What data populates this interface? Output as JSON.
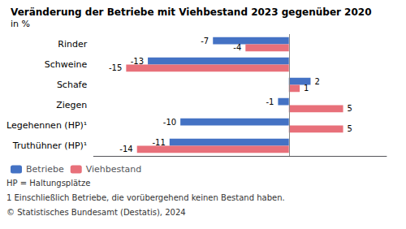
{
  "chart_data": {
    "type": "bar",
    "orientation": "horizontal",
    "title": "Veränderung der Betriebe mit Viehbestand 2023 gegenüber 2020",
    "subtitle": "in %",
    "categories": [
      "Rinder",
      "Schweine",
      "Schafe",
      "Ziegen",
      "Legehennen (HP)¹",
      "Truthühner (HP)¹"
    ],
    "series": [
      {
        "name": "Betriebe",
        "color": "#4472C4",
        "values": [
          -7,
          -13,
          2,
          -1,
          -10,
          -11
        ]
      },
      {
        "name": "Viehbestand",
        "color": "#E8707A",
        "values": [
          -4,
          -15,
          1,
          5,
          5,
          -14
        ]
      }
    ],
    "xlim": [
      -18,
      9
    ],
    "grid": false,
    "legend": "lower left",
    "data_labels": true,
    "tick_labels": "y",
    "annotations": [
      "HP = Haltungsplätze",
      "1 Einschließlich Betriebe, die vorübergehend keinen Bestand haben.",
      "© Statistisches Bundesamt (Destatis), 2024"
    ]
  }
}
